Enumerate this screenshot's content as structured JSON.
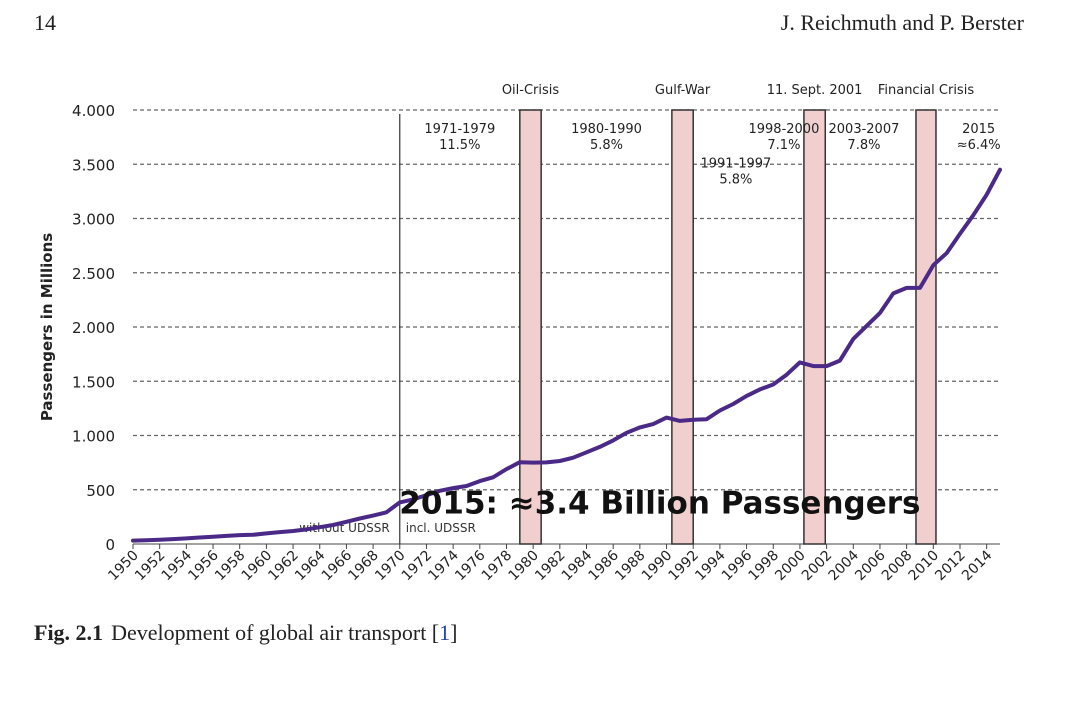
{
  "header": {
    "page_number": "14",
    "authors": "J. Reichmuth and P. Berster"
  },
  "caption": {
    "label": "Fig. 2.1",
    "text": "Development of global air transport [",
    "ref": "1",
    "close": "]"
  },
  "chart_data": {
    "type": "line",
    "ylabel": "Passengers in Millions",
    "xlabel": "",
    "xlim": [
      1950,
      2015
    ],
    "ylim": [
      0,
      4000
    ],
    "yticks": [
      0,
      500,
      1000,
      1500,
      2000,
      2500,
      3000,
      3500,
      4000
    ],
    "ytick_labels": [
      "0",
      "500",
      "1.000",
      "1.500",
      "2.000",
      "2.500",
      "3.000",
      "3.500",
      "4.000"
    ],
    "xticks": [
      1950,
      1952,
      1954,
      1956,
      1958,
      1960,
      1962,
      1964,
      1966,
      1968,
      1970,
      1972,
      1974,
      1976,
      1978,
      1980,
      1982,
      1984,
      1986,
      1988,
      1990,
      1992,
      1994,
      1996,
      1998,
      2000,
      2002,
      2004,
      2006,
      2008,
      2010,
      2012,
      2014
    ],
    "grid": "horizontal dashed",
    "colors": {
      "line": "#4a2a86",
      "crisis_fill": "#f2cfcf",
      "crisis_stroke": "#333333"
    },
    "series": [
      {
        "x": [
          1950,
          1951,
          1952,
          1953,
          1954,
          1955,
          1956,
          1957,
          1958,
          1959,
          1960,
          1961,
          1962,
          1963,
          1964,
          1965,
          1966,
          1967,
          1968,
          1969,
          1970,
          1971,
          1972,
          1973,
          1974,
          1975,
          1976,
          1977,
          1978,
          1979,
          1980,
          1981,
          1982,
          1983,
          1984,
          1985,
          1986,
          1987,
          1988,
          1989,
          1990,
          1991,
          1992,
          1993,
          1994,
          1995,
          1996,
          1997,
          1998,
          1999,
          2000,
          2001,
          2002,
          2003,
          2004,
          2005,
          2006,
          2007,
          2008,
          2009,
          2010,
          2011,
          2012,
          2013,
          2014,
          2015
        ],
        "values": [
          31,
          35,
          40,
          45,
          52,
          60,
          66,
          75,
          82,
          85,
          98,
          110,
          120,
          135,
          155,
          175,
          205,
          235,
          262,
          292,
          383,
          411,
          450,
          490,
          515,
          535,
          580,
          615,
          690,
          754,
          750,
          752,
          765,
          795,
          845,
          895,
          955,
          1025,
          1075,
          1105,
          1165,
          1135,
          1145,
          1150,
          1230,
          1290,
          1365,
          1425,
          1470,
          1560,
          1674,
          1640,
          1640,
          1690,
          1890,
          2010,
          2130,
          2310,
          2360,
          2360,
          2570,
          2680,
          2860,
          3030,
          3220,
          3450
        ]
      }
    ],
    "crisis_bands": [
      {
        "label": "Oil-Crisis",
        "x_start": 1979.0,
        "x_end": 1980.6
      },
      {
        "label": "Gulf-War",
        "x_start": 1990.4,
        "x_end": 1992.0
      },
      {
        "label": "11. Sept. 2001",
        "x_start": 2000.3,
        "x_end": 2001.9
      },
      {
        "label": "Financial Crisis",
        "x_start": 2008.7,
        "x_end": 2010.2
      }
    ],
    "divider": {
      "x": 1970,
      "left_label": "without UDSSR",
      "right_label": "incl. UDSSR"
    },
    "growth_labels": [
      {
        "line1": "1971-1979",
        "line2": "11.5%",
        "x": 1974.5,
        "y": 3790
      },
      {
        "line1": "1980-1990",
        "line2": "5.8%",
        "x": 1985.5,
        "y": 3790
      },
      {
        "line1": "1991-1997",
        "line2": "5.8%",
        "x": 1995.2,
        "y": 3470
      },
      {
        "line1": "1998-2000",
        "line2": "7.1%",
        "x": 1998.8,
        "y": 3790
      },
      {
        "line1": "2003-2007",
        "line2": "7.8%",
        "x": 2004.8,
        "y": 3790
      },
      {
        "line1": "2015",
        "line2": "≈6.4%",
        "x": 2013.4,
        "y": 3790
      }
    ],
    "annotation": "2015: ≈3.4 Billion Passengers"
  }
}
